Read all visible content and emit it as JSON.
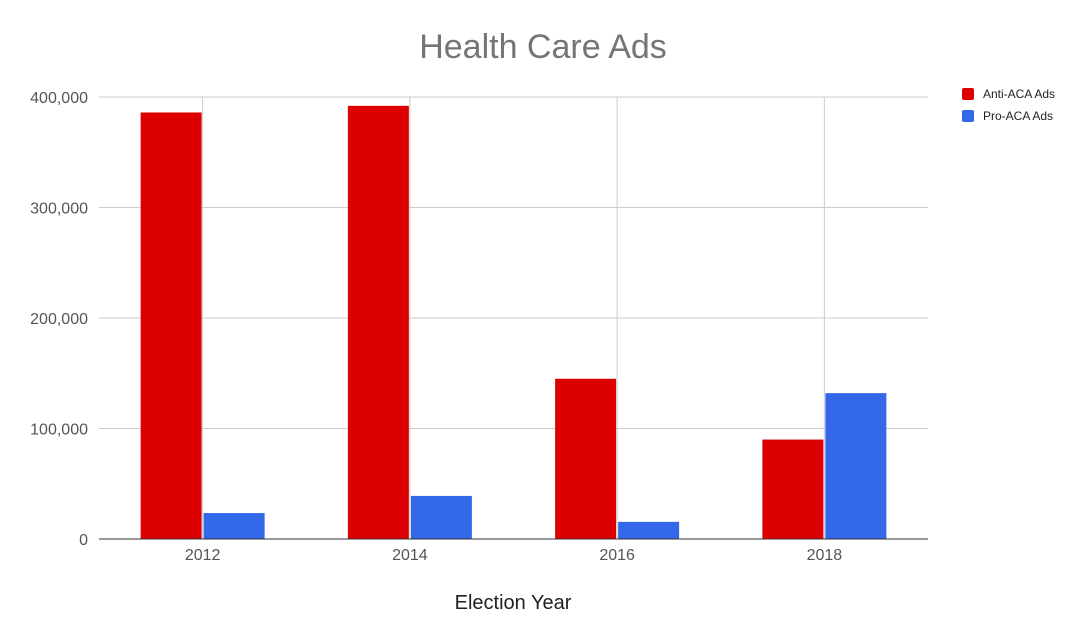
{
  "chart_data": {
    "type": "bar",
    "title": "Health Care Ads",
    "xlabel": "Election Year",
    "ylabel": "",
    "categories": [
      "2012",
      "2014",
      "2016",
      "2018"
    ],
    "series": [
      {
        "name": "Anti-ACA Ads",
        "color": "#dd0000",
        "values": [
          386000,
          392000,
          145000,
          90000
        ]
      },
      {
        "name": "Pro-ACA Ads",
        "color": "#3369e8",
        "values": [
          23500,
          39000,
          15500,
          132000
        ]
      }
    ],
    "ylim": [
      0,
      400000
    ],
    "yticks": [
      0,
      100000,
      200000,
      300000,
      400000
    ],
    "ytick_labels": [
      "0",
      "100,000",
      "200,000",
      "300,000",
      "400,000"
    ],
    "grid": true,
    "legend_position": "top-right"
  }
}
